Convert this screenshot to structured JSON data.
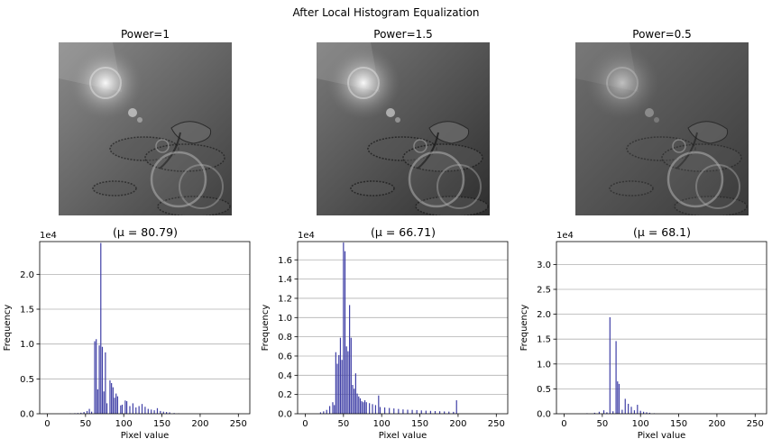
{
  "suptitle": "After Local Histogram Equalization",
  "panels": [
    {
      "title": "Power=1",
      "tone": {
        "bg_top": "#8a8a8a",
        "bg_bottom": "#3f3f3f",
        "glow": 1.0,
        "contrast": 0.85
      }
    },
    {
      "title": "Power=1.5",
      "tone": {
        "bg_top": "#7a7a7a",
        "bg_bottom": "#2e2e2e",
        "glow": 1.0,
        "contrast": 1.0
      }
    },
    {
      "title": "Power=0.5",
      "tone": {
        "bg_top": "#6e6e6e",
        "bg_bottom": "#3a3a3a",
        "glow": 0.6,
        "contrast": 0.7
      }
    }
  ],
  "chart_data": [
    {
      "type": "bar",
      "title": "(μ = 80.79)",
      "xlabel": "Pixel value",
      "ylabel": "Frequency",
      "offset_label": "1e4",
      "xlim": [
        -10,
        265
      ],
      "ylim": [
        0,
        24700
      ],
      "xticks": [
        0,
        50,
        100,
        150,
        200,
        250
      ],
      "yticks": [
        0,
        5000,
        10000,
        15000,
        20000
      ],
      "ytick_labels": [
        "0.0",
        "0.5",
        "1.0",
        "1.5",
        "2.0"
      ],
      "grid": "y",
      "bar_color": "#3f3fa6",
      "x": [
        30,
        36,
        40,
        44,
        48,
        52,
        55,
        58,
        62,
        64,
        66,
        68,
        70,
        72,
        74,
        76,
        78,
        82,
        84,
        86,
        88,
        90,
        92,
        96,
        98,
        102,
        104,
        108,
        112,
        116,
        120,
        124,
        128,
        132,
        136,
        140,
        144,
        148,
        152,
        156,
        160,
        166,
        172
      ],
      "values": [
        60,
        80,
        100,
        150,
        250,
        400,
        700,
        300,
        10400,
        10700,
        3500,
        9800,
        24500,
        9600,
        3200,
        8800,
        1500,
        4800,
        4400,
        3800,
        2300,
        2900,
        2500,
        1200,
        1300,
        1900,
        1800,
        1100,
        1500,
        900,
        1100,
        1400,
        1000,
        700,
        600,
        500,
        800,
        400,
        300,
        250,
        200,
        100,
        60
      ]
    },
    {
      "type": "bar",
      "title": "(μ = 66.71)",
      "xlabel": "Pixel value",
      "ylabel": "Frequency",
      "offset_label": "1e4",
      "xlim": [
        -10,
        265
      ],
      "ylim": [
        0,
        17900
      ],
      "xticks": [
        0,
        50,
        100,
        150,
        200,
        250
      ],
      "yticks": [
        0,
        2000,
        4000,
        6000,
        8000,
        10000,
        12000,
        14000,
        16000
      ],
      "ytick_labels": [
        "0.0",
        "0.2",
        "0.4",
        "0.6",
        "0.8",
        "1.0",
        "1.2",
        "1.4",
        "1.6"
      ],
      "grid": "y",
      "bar_color": "#3f3fa6",
      "x": [
        20,
        24,
        28,
        32,
        36,
        38,
        40,
        42,
        44,
        46,
        48,
        50,
        52,
        54,
        56,
        58,
        60,
        62,
        64,
        66,
        68,
        70,
        72,
        74,
        76,
        78,
        80,
        84,
        88,
        92,
        96,
        98,
        104,
        110,
        116,
        122,
        128,
        134,
        140,
        146,
        152,
        158,
        164,
        170,
        176,
        182,
        188,
        194,
        198
      ],
      "values": [
        150,
        250,
        400,
        800,
        1200,
        900,
        6400,
        5200,
        6100,
        7900,
        5600,
        17800,
        16900,
        7000,
        6500,
        11300,
        7900,
        3000,
        2600,
        4200,
        2100,
        1800,
        1600,
        1300,
        1200,
        1400,
        1200,
        1100,
        1000,
        900,
        1900,
        700,
        650,
        600,
        550,
        500,
        450,
        420,
        400,
        380,
        350,
        320,
        300,
        280,
        260,
        240,
        220,
        200,
        1400
      ]
    },
    {
      "type": "bar",
      "title": "(μ = 68.1)",
      "xlabel": "Pixel value",
      "ylabel": "Frequency",
      "offset_label": "1e4",
      "xlim": [
        -10,
        265
      ],
      "ylim": [
        0,
        34600
      ],
      "xticks": [
        0,
        50,
        100,
        150,
        200,
        250
      ],
      "yticks": [
        0,
        5000,
        10000,
        15000,
        20000,
        25000,
        30000
      ],
      "ytick_labels": [
        "0.0",
        "0.5",
        "1.0",
        "1.5",
        "2.0",
        "2.5",
        "3.0"
      ],
      "grid": "y",
      "bar_color": "#3f3fa6",
      "x": [
        30,
        40,
        46,
        52,
        56,
        60,
        64,
        68,
        70,
        72,
        76,
        80,
        84,
        88,
        92,
        96,
        100,
        104,
        108,
        112,
        118
      ],
      "values": [
        100,
        200,
        400,
        700,
        300,
        19400,
        500,
        14600,
        6500,
        6000,
        800,
        3000,
        2000,
        1400,
        700,
        1800,
        600,
        400,
        300,
        200,
        100
      ]
    }
  ]
}
